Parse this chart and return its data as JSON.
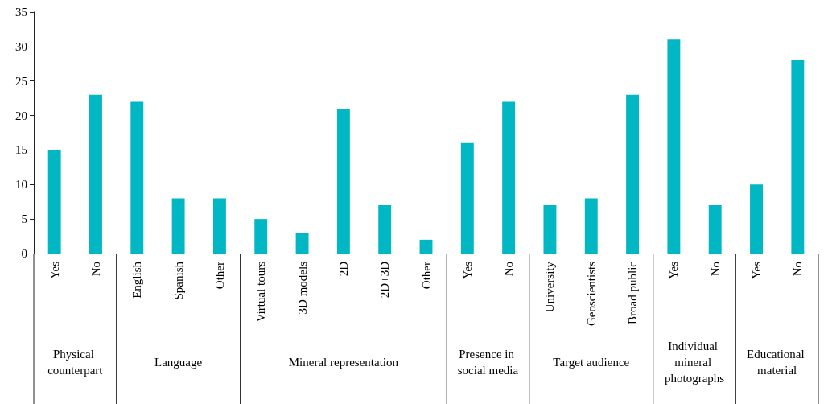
{
  "chart_data": {
    "type": "bar",
    "categories": [
      "Yes",
      "No",
      "English",
      "Spanish",
      "Other",
      "Virtual tours",
      "3D models",
      "2D",
      "2D+3D",
      "Other",
      "Yes",
      "No",
      "University",
      "Geoscientists",
      "Broad public",
      "Yes",
      "No",
      "Yes",
      "No"
    ],
    "values": [
      15,
      23,
      22,
      8,
      8,
      5,
      3,
      21,
      7,
      2,
      16,
      22,
      7,
      8,
      23,
      31,
      7,
      10,
      28
    ],
    "color": "#00b7c3",
    "ylim": [
      0,
      35
    ],
    "yticks": [
      0,
      5,
      10,
      15,
      20,
      25,
      30,
      35
    ],
    "grid": false,
    "annotations": [
      "Physical counterpart",
      "Language",
      "Mineral representation",
      "Presence in social media",
      "Target audience",
      "Individual mineral photographs",
      "Educational material"
    ]
  }
}
